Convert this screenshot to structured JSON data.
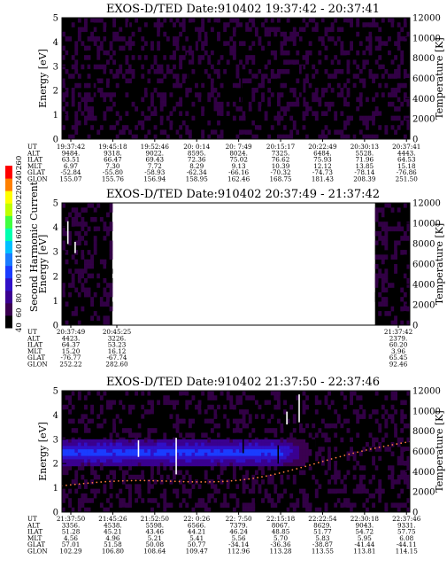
{
  "chart_data": [
    {
      "type": "heatmap",
      "title": "EXOS-D/TED   Date:910402  19:37:42 - 20:37:41",
      "ylabel": "Energy [eV]",
      "y2label": "Temperature [K]",
      "ylim": [
        0,
        5
      ],
      "y2lim": [
        0,
        12000
      ],
      "yticks": [
        "0",
        "1",
        "2",
        "3",
        "4",
        "5"
      ],
      "y2ticks": [
        "0",
        "2000",
        "4000",
        "6000",
        "8000",
        "10000",
        "12000"
      ],
      "data_spans": [
        [
          0,
          1
        ]
      ],
      "background_level": 42,
      "band": null,
      "orbit_table": {
        "labels": [
          "UT",
          "ALT",
          "ILAT",
          "MLT",
          "GLAT",
          "GLON"
        ],
        "columns": [
          [
            "19:37:42",
            "9484.",
            "63.51",
            "6.97",
            "-52.84",
            "155.07"
          ],
          [
            "19:45:18",
            "9318.",
            "66.47",
            "7.30",
            "-55.80",
            "155.76"
          ],
          [
            "19:52:46",
            "9022.",
            "69.43",
            "7.72",
            "-58.93",
            "156.94"
          ],
          [
            "20: 0:14",
            "8595.",
            "72.36",
            "8.29",
            "-62.34",
            "158.95"
          ],
          [
            "20: 7:49",
            "8024.",
            "75.02",
            "9.13",
            "-66.16",
            "162.46"
          ],
          [
            "20:15:17",
            "7325.",
            "76.62",
            "10.39",
            "-70.32",
            "168.75"
          ],
          [
            "20:22:49",
            "6484.",
            "75.93",
            "12.12",
            "-74.73",
            "181.43"
          ],
          [
            "20:30:13",
            "5528.",
            "71.96",
            "13.85",
            "-78.14",
            "208.39"
          ],
          [
            "20:37:41",
            "4443.",
            "64.53",
            "15.18",
            "-76.86",
            "251.50"
          ]
        ]
      }
    },
    {
      "type": "heatmap",
      "title": "EXOS-D/TED   Date:910402  20:37:49 - 21:37:42",
      "ylabel": "Energy [eV]",
      "y2label": "Temperature [K]",
      "ylim": [
        0,
        5
      ],
      "y2lim": [
        0,
        12000
      ],
      "yticks": [
        "0",
        "1",
        "2",
        "3",
        "4",
        "5"
      ],
      "y2ticks": [
        "0",
        "2000",
        "4000",
        "6000",
        "8000",
        "10000",
        "12000"
      ],
      "data_spans": [
        [
          0,
          0.145
        ],
        [
          0.9,
          1
        ]
      ],
      "background_level": 42,
      "band": null,
      "orbit_table": {
        "labels": [
          "UT",
          "ALT",
          "ILAT",
          "MLT",
          "GLAT",
          "GLON"
        ],
        "columns": [
          [
            "20:37:49",
            "4423.",
            "64.37",
            "15.20",
            "-76.77",
            "252.22"
          ],
          [
            "20:45:25",
            "3226.",
            "53.23",
            "16.12",
            "-67.74",
            "282.60"
          ],
          [
            "21:37:42",
            "2379.",
            "60.20",
            "3.96",
            "65.45",
            "92.46"
          ]
        ]
      }
    },
    {
      "type": "heatmap",
      "title": "EXOS-D/TED   Date:910402  21:37:50 - 22:37:46",
      "ylabel": "Energy [eV]",
      "y2label": "Temperature [K]",
      "ylim": [
        0,
        5
      ],
      "y2lim": [
        0,
        12000
      ],
      "yticks": [
        "0",
        "1",
        "2",
        "3",
        "4",
        "5"
      ],
      "y2ticks": [
        "0",
        "2000",
        "4000",
        "6000",
        "8000",
        "10000",
        "12000"
      ],
      "data_spans": [
        [
          0,
          1
        ]
      ],
      "background_level": 42,
      "band": {
        "center_ev": 2.45,
        "halfwidth_ev": 0.55,
        "x_end": 0.72,
        "peak_level": 122
      },
      "orbit_table": {
        "labels": [
          "UT",
          "ALT",
          "ILAT",
          "MLT",
          "GLAT",
          "GLON"
        ],
        "columns": [
          [
            "21:37:50",
            "3356.",
            "51.28",
            "4.56",
            "57.01",
            "102.29"
          ],
          [
            "21:45:26",
            "4538.",
            "45.21",
            "4.96",
            "51.58",
            "106.80"
          ],
          [
            "21:52:50",
            "5598.",
            "43.46",
            "5.21",
            "50.08",
            "108.64"
          ],
          [
            "22: 0:26",
            "6566.",
            "44.21",
            "5.41",
            "50.77",
            "109.47"
          ],
          [
            "22: 7:50",
            "7379.",
            "46.24",
            "5.56",
            "-34.14",
            "112.96"
          ],
          [
            "22:15:18",
            "8067.",
            "48.85",
            "5.70",
            "-36.36",
            "113.28"
          ],
          [
            "22:22:54",
            "8629.",
            "51.77",
            "5.83",
            "-38.87",
            "113.55"
          ],
          [
            "22:30:18",
            "9043.",
            "54.72",
            "5.95",
            "-41.44",
            "113.81"
          ],
          [
            "22:37:46",
            "9331.",
            "57.75",
            "6.08",
            "-44.11",
            "114.15"
          ]
        ]
      }
    }
  ],
  "colorbar": {
    "label": "Second Harmonic Current",
    "range": [
      40,
      260
    ],
    "ticks": [
      "40",
      "60",
      "80",
      "100",
      "120",
      "140",
      "160",
      "180",
      "200",
      "220",
      "240",
      "260"
    ]
  },
  "colors": {
    "background": "#ffffff",
    "scale": [
      "#000000",
      "#3a0050",
      "#3a0090",
      "#3010c8",
      "#1a3cff",
      "#1a7cff",
      "#00c0ff",
      "#00ffb0",
      "#40ff40",
      "#c0ff00",
      "#ffff00",
      "#ff8000",
      "#ff0000"
    ]
  }
}
